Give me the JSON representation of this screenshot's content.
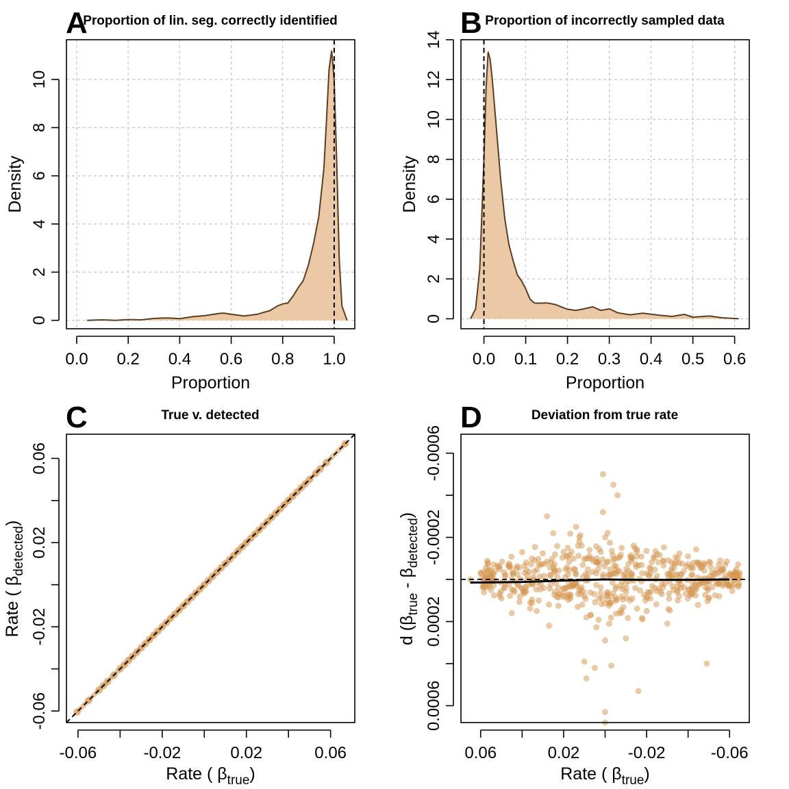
{
  "chart_data": [
    {
      "panel": "A",
      "type": "area",
      "title": "Proportion of lin. seg. correctly identified",
      "xlabel": "Proportion",
      "ylabel": "Density",
      "xlim": [
        -0.04,
        1.08
      ],
      "ylim": [
        -0.35,
        11.65
      ],
      "xticks": [
        0.0,
        0.2,
        0.4,
        0.6,
        0.8,
        1.0
      ],
      "xtick_labels": [
        "0.0",
        "0.2",
        "0.4",
        "0.6",
        "0.8",
        "1.0"
      ],
      "yticks": [
        0,
        2,
        4,
        6,
        8,
        10
      ],
      "ytick_labels": [
        "0",
        "2",
        "4",
        "6",
        "8",
        "10"
      ],
      "grid": true,
      "vline": 1.0,
      "x": [
        0.04,
        0.1,
        0.15,
        0.2,
        0.25,
        0.3,
        0.35,
        0.4,
        0.45,
        0.5,
        0.55,
        0.57,
        0.6,
        0.65,
        0.7,
        0.75,
        0.78,
        0.8,
        0.82,
        0.84,
        0.86,
        0.88,
        0.9,
        0.92,
        0.94,
        0.96,
        0.97,
        0.98,
        0.99,
        1.0,
        1.01,
        1.02,
        1.03,
        1.05
      ],
      "y": [
        0.0,
        0.02,
        0.0,
        0.03,
        0.02,
        0.08,
        0.1,
        0.07,
        0.15,
        0.2,
        0.28,
        0.3,
        0.25,
        0.18,
        0.25,
        0.4,
        0.6,
        0.68,
        0.72,
        1.0,
        1.35,
        1.65,
        2.3,
        3.2,
        4.3,
        6.3,
        8.3,
        10.4,
        11.2,
        10.0,
        6.5,
        2.5,
        0.6,
        0.0
      ]
    },
    {
      "panel": "B",
      "type": "area",
      "title": "Proportion of incorrectly sampled data",
      "xlabel": "Proportion",
      "ylabel": "Density",
      "xlim": [
        -0.055,
        0.635
      ],
      "ylim": [
        -0.5,
        14.0
      ],
      "xticks": [
        0.0,
        0.1,
        0.2,
        0.3,
        0.4,
        0.5,
        0.6
      ],
      "xtick_labels": [
        "0.0",
        "0.1",
        "0.2",
        "0.3",
        "0.4",
        "0.5",
        "0.6"
      ],
      "yticks": [
        0,
        2,
        4,
        6,
        8,
        10,
        12,
        14
      ],
      "ytick_labels": [
        "0",
        "2",
        "4",
        "6",
        "8",
        "10",
        "12",
        "14"
      ],
      "grid": true,
      "vline": 0.0,
      "x": [
        -0.032,
        -0.02,
        -0.01,
        0.0,
        0.005,
        0.01,
        0.015,
        0.02,
        0.03,
        0.04,
        0.05,
        0.06,
        0.07,
        0.08,
        0.09,
        0.1,
        0.11,
        0.12,
        0.13,
        0.15,
        0.17,
        0.2,
        0.22,
        0.24,
        0.26,
        0.28,
        0.3,
        0.32,
        0.35,
        0.38,
        0.42,
        0.45,
        0.48,
        0.5,
        0.54,
        0.57,
        0.61
      ],
      "y": [
        0.0,
        0.5,
        2.5,
        8.0,
        11.5,
        13.4,
        13.0,
        12.0,
        9.5,
        7.0,
        5.0,
        3.7,
        2.9,
        2.2,
        1.9,
        1.5,
        1.0,
        0.8,
        0.78,
        0.8,
        0.72,
        0.48,
        0.42,
        0.5,
        0.6,
        0.42,
        0.5,
        0.3,
        0.2,
        0.28,
        0.18,
        0.12,
        0.22,
        0.08,
        0.14,
        0.05,
        0.0
      ]
    },
    {
      "panel": "C",
      "type": "scatter",
      "title": "True v. detected",
      "xlabel_parts": {
        "pre": "Rate ( ",
        "symbol": "β",
        "sub": "true",
        "post": ")"
      },
      "ylabel_parts": {
        "pre": "Rate ( ",
        "symbol": "β",
        "sub": "detected",
        "post": ")"
      },
      "xlim": [
        -0.0655,
        0.0715
      ],
      "ylim": [
        -0.0655,
        0.0715
      ],
      "xticks": [
        -0.06,
        -0.04,
        -0.02,
        0.0,
        0.02,
        0.04,
        0.06
      ],
      "xtick_labels": [
        "-0.06",
        "",
        "-0.02",
        "",
        "0.02",
        "",
        "0.06"
      ],
      "yticks": [
        -0.06,
        -0.04,
        -0.02,
        0.0,
        0.02,
        0.04,
        0.06
      ],
      "ytick_labels": [
        "-0.06",
        "",
        "-0.02",
        "",
        "0.02",
        "",
        "0.06"
      ],
      "grid": false,
      "reference_line": "y = x",
      "x": [
        -0.0605,
        -0.055,
        -0.05,
        -0.048,
        -0.046,
        -0.043,
        -0.04,
        -0.038,
        -0.036,
        -0.034,
        -0.032,
        -0.03,
        -0.028,
        -0.026,
        -0.024,
        -0.022,
        -0.02,
        -0.018,
        -0.016,
        -0.014,
        -0.012,
        -0.01,
        -0.008,
        -0.006,
        -0.004,
        -0.002,
        0.0,
        0.002,
        0.004,
        0.006,
        0.008,
        0.01,
        0.012,
        0.014,
        0.016,
        0.018,
        0.02,
        0.022,
        0.024,
        0.026,
        0.028,
        0.03,
        0.032,
        0.034,
        0.036,
        0.038,
        0.04,
        0.042,
        0.044,
        0.046,
        0.048,
        0.05,
        0.053,
        0.055,
        0.058,
        0.067
      ],
      "y": [
        -0.0605,
        -0.055,
        -0.05,
        -0.048,
        -0.046,
        -0.043,
        -0.04,
        -0.038,
        -0.036,
        -0.034,
        -0.032,
        -0.03,
        -0.028,
        -0.026,
        -0.024,
        -0.022,
        -0.02,
        -0.018,
        -0.016,
        -0.014,
        -0.012,
        -0.01,
        -0.008,
        -0.006,
        -0.004,
        -0.002,
        0.0,
        0.002,
        0.004,
        0.006,
        0.008,
        0.01,
        0.012,
        0.014,
        0.016,
        0.018,
        0.02,
        0.022,
        0.024,
        0.026,
        0.028,
        0.03,
        0.032,
        0.034,
        0.036,
        0.038,
        0.04,
        0.042,
        0.044,
        0.046,
        0.048,
        0.05,
        0.053,
        0.055,
        0.058,
        0.067
      ]
    },
    {
      "panel": "D",
      "type": "scatter",
      "title": "Deviation from true rate",
      "xlabel_parts": {
        "pre": "Rate ( ",
        "symbol": "β",
        "sub": "true",
        "post": ")"
      },
      "ylabel_parts": {
        "pre": "d (",
        "symbol": "β",
        "sub": "true",
        "mid": " - ",
        "symbol2": "β",
        "sub2": "detected",
        "post": ")"
      },
      "xlim": [
        0.0695,
        -0.0695
      ],
      "ylim": [
        0.00068,
        -0.00069
      ],
      "xticks": [
        0.06,
        0.04,
        0.02,
        0.0,
        -0.02,
        -0.04,
        -0.06
      ],
      "xtick_labels": [
        "0.06",
        "",
        "0.02",
        "",
        "-0.02",
        "",
        "-0.06"
      ],
      "yticks": [
        -0.0006,
        -0.0004,
        -0.0002,
        0.0,
        0.0002,
        0.0004,
        0.0006
      ],
      "ytick_labels": [
        "-0.0006",
        "",
        "-0.0002",
        "",
        "0.0002",
        "",
        "0.0006"
      ],
      "grid": false,
      "reference_line": "y = 0",
      "smooth_x": [
        0.065,
        0.04,
        0.02,
        0.0,
        -0.02,
        -0.04,
        -0.06
      ],
      "smooth_y": [
        1.5e-05,
        1.2e-05,
        5e-06,
        0.0,
        2.5e-06,
        1.8e-06,
        0.0
      ],
      "x": [
        0.0,
        -0.016,
        0.009,
        -0.004,
        0.001,
        0.0,
        -0.003,
        0.028,
        0.005,
        0.033,
        0.007,
        0.01,
        -0.006,
        -0.01,
        0.0,
        -0.002,
        0.018,
        0.025,
        0.001,
        0.02,
        -0.04,
        -0.049,
        0.04,
        0.045,
        0.027,
        0.014,
        0.0,
        -0.02,
        0.009,
        0.012,
        -0.018,
        -0.03,
        0.038,
        -0.05,
        0.06,
        0.065,
        -0.06,
        -0.055,
        0.05,
        -0.045,
        -0.035,
        -0.025,
        0.032,
        0.015,
        -0.008,
        0.003,
        0.008,
        -0.012,
        0.022,
        -0.028,
        -0.033,
        -0.038,
        -0.042,
        0.042,
        0.048,
        0.055,
        -0.015,
        0.011,
        -0.022,
        0.017,
        0.024,
        -0.007,
        0.004,
        -0.001,
        0.006,
        0.013
      ],
      "y": [
        0.00068,
        0.00053,
        0.00047,
        -0.00045,
        -0.0005,
        0.00063,
        0.00041,
        -0.0003,
        0.00042,
        0.00015,
        0.00017,
        0.00039,
        -0.0004,
        0.00028,
        0.00029,
        0.00021,
        -0.00015,
        -0.00022,
        -0.00032,
        -0.00013,
        -0.00011,
        0.0004,
        -0.00013,
        0.00016,
        0.00022,
        -0.00025,
        -0.0002,
        0.00015,
        0.00018,
        -0.00021,
        0.00019,
        0.00021,
        -8e-05,
        9e-05,
        -3e-05,
        0.0,
        -2e-05,
        8e-05,
        9e-05,
        -7e-05,
        0.0001,
        -0.00012,
        0.0001,
        -5e-05,
        -0.00015,
        9e-05,
        -0.0001,
        0.0001,
        7e-05,
        -9e-05,
        5e-05,
        -4e-05,
        4e-05,
        3e-05,
        -2e-05,
        5e-05,
        -6e-05,
        0.00012,
        6e-05,
        8e-05,
        -4e-05,
        0.00016,
        -8e-05,
        6e-05,
        -9e-05,
        7e-05
      ]
    }
  ],
  "panel_letters": [
    "A",
    "B",
    "C",
    "D"
  ],
  "colors": {
    "fill": "#ebc9a7",
    "line": "#5c3d1e",
    "point": "#d4954f",
    "axis": "#000000",
    "grid": "#c8c8c8"
  }
}
